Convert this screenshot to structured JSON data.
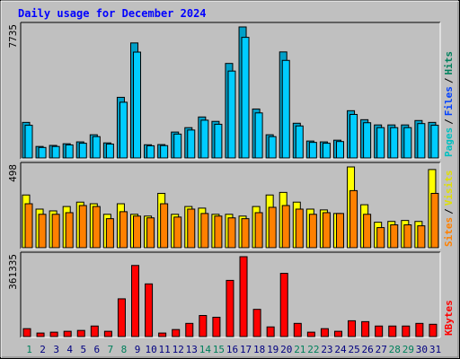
{
  "chart_data": [
    {
      "type": "bar",
      "title": "Daily usage for December 2024",
      "ylim": [
        0,
        7735
      ],
      "legend": [
        {
          "name": "Pages",
          "color": "#00c0c0"
        },
        {
          "name": "Files",
          "color": "#0040ff"
        },
        {
          "name": "Hits",
          "color": "#00805c"
        }
      ],
      "legend_separator": "/",
      "series": [
        {
          "name": "Hits",
          "color": "#00a0c8",
          "values": [
            2100,
            680,
            740,
            840,
            950,
            1370,
            890,
            3580,
            6790,
            780,
            790,
            1530,
            1790,
            2420,
            2160,
            5580,
            7735,
            2890,
            1370,
            6260,
            2050,
            1000,
            950,
            1050,
            2790,
            2260,
            1950,
            1950,
            1950,
            2210,
            2100
          ]
        },
        {
          "name": "Files",
          "color": "#00ccff",
          "values": [
            1930,
            620,
            680,
            770,
            870,
            1260,
            820,
            3290,
            6250,
            720,
            730,
            1410,
            1650,
            2230,
            1990,
            5130,
            7120,
            2660,
            1260,
            5760,
            1890,
            920,
            870,
            970,
            2570,
            2080,
            1790,
            1790,
            1790,
            2030,
            1930
          ]
        }
      ]
    },
    {
      "type": "bar",
      "ylim": [
        0,
        498
      ],
      "legend": [
        {
          "name": "Sites",
          "color": "#ff8000"
        },
        {
          "name": "Visits",
          "color": "#e0e000"
        }
      ],
      "legend_separator": "/",
      "series": [
        {
          "name": "Visits",
          "color": "#ffff00",
          "values": [
            325,
            238,
            227,
            254,
            281,
            271,
            206,
            271,
            206,
            195,
            335,
            206,
            254,
            244,
            206,
            206,
            195,
            254,
            325,
            341,
            281,
            238,
            233,
            211,
            498,
            265,
            157,
            162,
            168,
            162,
            482
          ]
        },
        {
          "name": "Sites",
          "color": "#ff8000",
          "values": [
            271,
            206,
            206,
            216,
            260,
            254,
            179,
            222,
            195,
            184,
            271,
            189,
            238,
            211,
            195,
            184,
            179,
            216,
            249,
            260,
            238,
            206,
            216,
            211,
            352,
            206,
            124,
            141,
            141,
            135,
            335
          ]
        }
      ]
    },
    {
      "type": "bar",
      "ylim": [
        0,
        361335
      ],
      "legend": [
        {
          "name": "KBytes",
          "color": "#ff0000"
        }
      ],
      "series": [
        {
          "name": "KBytes",
          "color": "#ff0000",
          "values": [
            35740,
            15880,
            19860,
            23830,
            27800,
            47650,
            23830,
            170750,
            321650,
            238260,
            15880,
            31770,
            59570,
            95300,
            87360,
            254140,
            361335,
            123100,
            43680,
            285910,
            59570,
            19860,
            35740,
            23830,
            71480,
            67510,
            47650,
            47650,
            47650,
            59570,
            55590
          ]
        }
      ],
      "categories": [
        "1",
        "2",
        "3",
        "4",
        "5",
        "6",
        "7",
        "8",
        "9",
        "10",
        "11",
        "12",
        "13",
        "14",
        "15",
        "16",
        "17",
        "18",
        "19",
        "20",
        "21",
        "22",
        "23",
        "24",
        "25",
        "26",
        "27",
        "28",
        "29",
        "30",
        "31"
      ],
      "category_colors": [
        "#00805c",
        "#000080",
        "#000080",
        "#000080",
        "#000080",
        "#000080",
        "#00805c",
        "#00805c",
        "#000080",
        "#000080",
        "#000080",
        "#000080",
        "#000080",
        "#00805c",
        "#00805c",
        "#000080",
        "#000080",
        "#000080",
        "#000080",
        "#000080",
        "#00805c",
        "#00805c",
        "#000080",
        "#000080",
        "#000080",
        "#000080",
        "#000080",
        "#00805c",
        "#00805c",
        "#000080",
        "#000080"
      ]
    }
  ]
}
